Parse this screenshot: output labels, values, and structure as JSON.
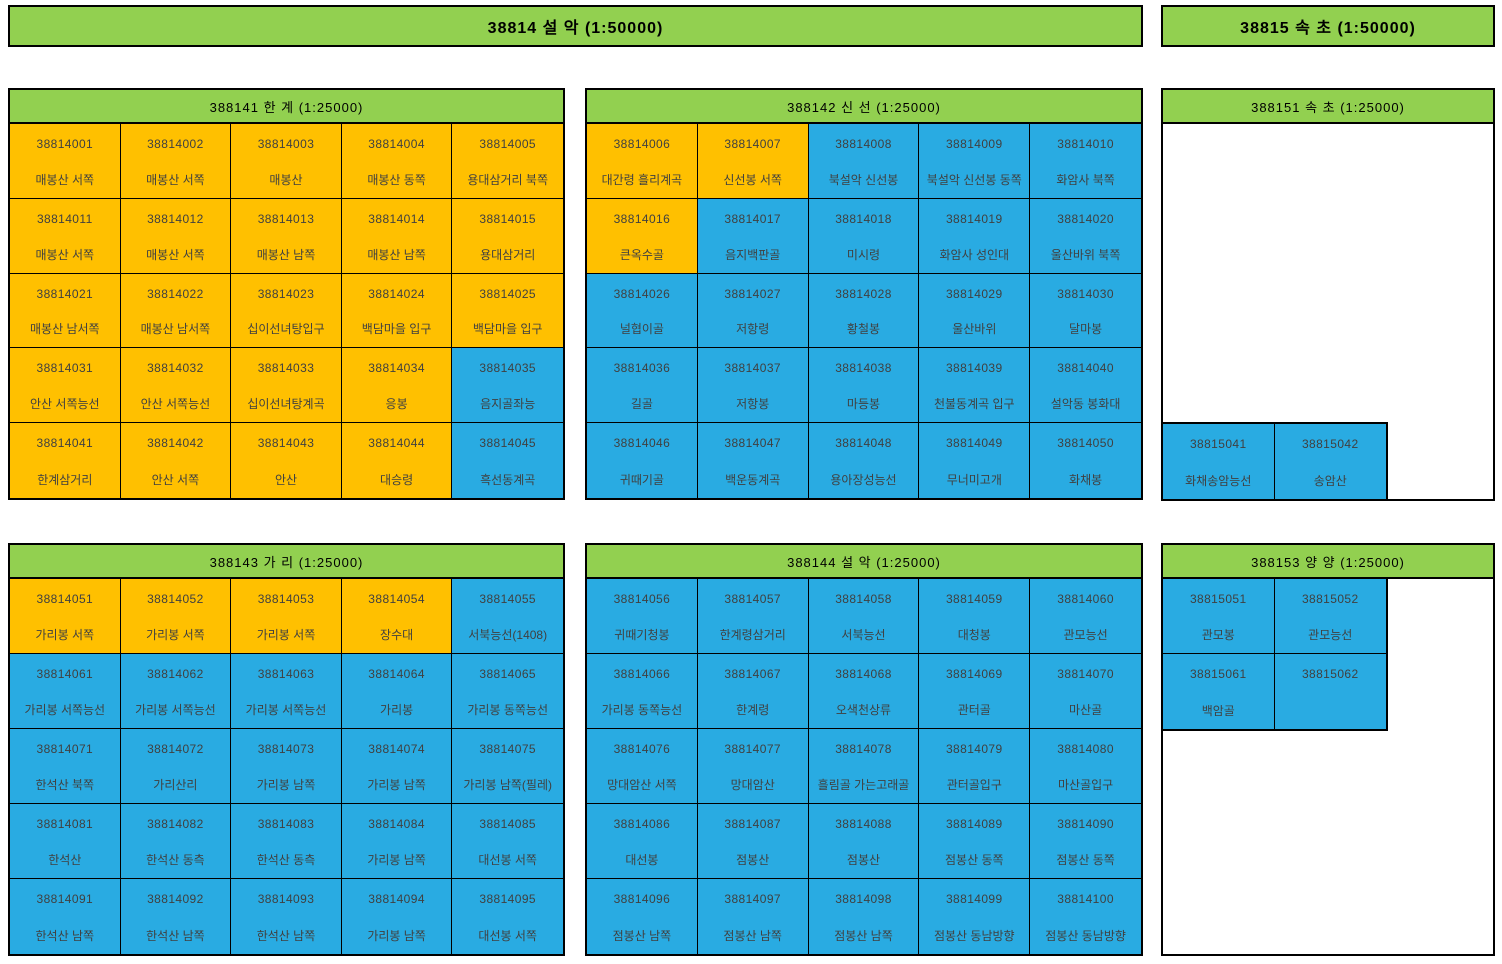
{
  "colors": {
    "header_green": "#92D050",
    "orange": "#FFC000",
    "blue": "#29ABE2",
    "text": "#404040",
    "border": "#000000"
  },
  "top_bars": [
    {
      "title": "38814  설  악 (1:50000)"
    },
    {
      "title": "38815  속  초 (1:50000)"
    }
  ],
  "sections": [
    {
      "id": "388141",
      "title": "388141  한  계 (1:25000)",
      "cells": [
        {
          "num": "38814001",
          "name": "매봉산 서쪽",
          "fill": "orange"
        },
        {
          "num": "38814002",
          "name": "매봉산 서쪽",
          "fill": "orange"
        },
        {
          "num": "38814003",
          "name": "매봉산",
          "fill": "orange"
        },
        {
          "num": "38814004",
          "name": "매봉산 동쪽",
          "fill": "orange"
        },
        {
          "num": "38814005",
          "name": "용대삼거리 북쪽",
          "fill": "orange"
        },
        {
          "num": "38814011",
          "name": "매봉산 서쪽",
          "fill": "orange"
        },
        {
          "num": "38814012",
          "name": "매봉산 서쪽",
          "fill": "orange"
        },
        {
          "num": "38814013",
          "name": "매봉산 남쪽",
          "fill": "orange"
        },
        {
          "num": "38814014",
          "name": "매봉산 남쪽",
          "fill": "orange"
        },
        {
          "num": "38814015",
          "name": "용대삼거리",
          "fill": "orange"
        },
        {
          "num": "38814021",
          "name": "매봉산 남서쪽",
          "fill": "orange"
        },
        {
          "num": "38814022",
          "name": "매봉산 남서쪽",
          "fill": "orange"
        },
        {
          "num": "38814023",
          "name": "십이선녀탕입구",
          "fill": "orange"
        },
        {
          "num": "38814024",
          "name": "백담마을 입구",
          "fill": "orange"
        },
        {
          "num": "38814025",
          "name": "백담마을 입구",
          "fill": "orange"
        },
        {
          "num": "38814031",
          "name": "안산 서쪽능선",
          "fill": "orange"
        },
        {
          "num": "38814032",
          "name": "안산 서쪽능선",
          "fill": "orange"
        },
        {
          "num": "38814033",
          "name": "십이선녀탕계곡",
          "fill": "orange"
        },
        {
          "num": "38814034",
          "name": "응봉",
          "fill": "orange"
        },
        {
          "num": "38814035",
          "name": "음지골좌능",
          "fill": "blue"
        },
        {
          "num": "38814041",
          "name": "한계삼거리",
          "fill": "orange"
        },
        {
          "num": "38814042",
          "name": "안산 서쪽",
          "fill": "orange"
        },
        {
          "num": "38814043",
          "name": "안산",
          "fill": "orange"
        },
        {
          "num": "38814044",
          "name": "대승령",
          "fill": "orange"
        },
        {
          "num": "38814045",
          "name": "흑선동계곡",
          "fill": "blue"
        }
      ]
    },
    {
      "id": "388142",
      "title": "388142  신  선 (1:25000)",
      "cells": [
        {
          "num": "38814006",
          "name": "대간령 흘리계곡",
          "fill": "orange"
        },
        {
          "num": "38814007",
          "name": "신선봉 서쪽",
          "fill": "orange"
        },
        {
          "num": "38814008",
          "name": "북설악 신선봉",
          "fill": "blue"
        },
        {
          "num": "38814009",
          "name": "북설악 신선봉 동쪽",
          "fill": "blue"
        },
        {
          "num": "38814010",
          "name": "화암사 북쪽",
          "fill": "blue"
        },
        {
          "num": "38814016",
          "name": "큰옥수골",
          "fill": "orange"
        },
        {
          "num": "38814017",
          "name": "음지백판골",
          "fill": "blue"
        },
        {
          "num": "38814018",
          "name": "미시령",
          "fill": "blue"
        },
        {
          "num": "38814019",
          "name": "화암사 성인대",
          "fill": "blue"
        },
        {
          "num": "38814020",
          "name": "울산바위 북쪽",
          "fill": "blue"
        },
        {
          "num": "38814026",
          "name": "널협이골",
          "fill": "blue"
        },
        {
          "num": "38814027",
          "name": "저항령",
          "fill": "blue"
        },
        {
          "num": "38814028",
          "name": "황철봉",
          "fill": "blue"
        },
        {
          "num": "38814029",
          "name": "울산바위",
          "fill": "blue"
        },
        {
          "num": "38814030",
          "name": "달마봉",
          "fill": "blue"
        },
        {
          "num": "38814036",
          "name": "길골",
          "fill": "blue"
        },
        {
          "num": "38814037",
          "name": "저항봉",
          "fill": "blue"
        },
        {
          "num": "38814038",
          "name": "마등봉",
          "fill": "blue"
        },
        {
          "num": "38814039",
          "name": "천불동계곡 입구",
          "fill": "blue"
        },
        {
          "num": "38814040",
          "name": "설악동 봉화대",
          "fill": "blue"
        },
        {
          "num": "38814046",
          "name": "귀때기골",
          "fill": "blue"
        },
        {
          "num": "38814047",
          "name": "백운동계곡",
          "fill": "blue"
        },
        {
          "num": "38814048",
          "name": "용아장성능선",
          "fill": "blue"
        },
        {
          "num": "38814049",
          "name": "무너미고개",
          "fill": "blue"
        },
        {
          "num": "38814050",
          "name": "화채봉",
          "fill": "blue"
        }
      ]
    },
    {
      "id": "388151",
      "title": "388151  속  초 (1:25000)",
      "cells": [
        {
          "num": "38815041",
          "name": "화채송암능선",
          "fill": "blue"
        },
        {
          "num": "38815042",
          "name": "송암산",
          "fill": "blue"
        }
      ]
    },
    {
      "id": "388143",
      "title": "388143  가  리 (1:25000)",
      "cells": [
        {
          "num": "38814051",
          "name": "가리봉 서쪽",
          "fill": "orange"
        },
        {
          "num": "38814052",
          "name": "가리봉 서쪽",
          "fill": "orange"
        },
        {
          "num": "38814053",
          "name": "가리봉 서쪽",
          "fill": "orange"
        },
        {
          "num": "38814054",
          "name": "장수대",
          "fill": "orange"
        },
        {
          "num": "38814055",
          "name": "서북능선(1408)",
          "fill": "blue"
        },
        {
          "num": "38814061",
          "name": "가리봉 서쪽능선",
          "fill": "blue"
        },
        {
          "num": "38814062",
          "name": "가리봉 서쪽능선",
          "fill": "blue"
        },
        {
          "num": "38814063",
          "name": "가리봉 서쪽능선",
          "fill": "blue"
        },
        {
          "num": "38814064",
          "name": "가리봉",
          "fill": "blue"
        },
        {
          "num": "38814065",
          "name": "가리봉 동쪽능선",
          "fill": "blue"
        },
        {
          "num": "38814071",
          "name": "한석산 북쪽",
          "fill": "blue"
        },
        {
          "num": "38814072",
          "name": "가리산리",
          "fill": "blue"
        },
        {
          "num": "38814073",
          "name": "가리봉 남쪽",
          "fill": "blue"
        },
        {
          "num": "38814074",
          "name": "가리봉 남쪽",
          "fill": "blue"
        },
        {
          "num": "38814075",
          "name": "가리봉 남쪽(필레)",
          "fill": "blue"
        },
        {
          "num": "38814081",
          "name": "한석산",
          "fill": "blue"
        },
        {
          "num": "38814082",
          "name": "한석산 동측",
          "fill": "blue"
        },
        {
          "num": "38814083",
          "name": "한석산 동측",
          "fill": "blue"
        },
        {
          "num": "38814084",
          "name": "가리봉 남쪽",
          "fill": "blue"
        },
        {
          "num": "38814085",
          "name": "대선봉 서쪽",
          "fill": "blue"
        },
        {
          "num": "38814091",
          "name": "한석산 남쪽",
          "fill": "blue"
        },
        {
          "num": "38814092",
          "name": "한석산 남쪽",
          "fill": "blue"
        },
        {
          "num": "38814093",
          "name": "한석산 남쪽",
          "fill": "blue"
        },
        {
          "num": "38814094",
          "name": "가리봉 남쪽",
          "fill": "blue"
        },
        {
          "num": "38814095",
          "name": "대선봉 서쪽",
          "fill": "blue"
        }
      ]
    },
    {
      "id": "388144",
      "title": "388144  설  악 (1:25000)",
      "cells": [
        {
          "num": "38814056",
          "name": "귀때기청봉",
          "fill": "blue"
        },
        {
          "num": "38814057",
          "name": "한계령삼거리",
          "fill": "blue"
        },
        {
          "num": "38814058",
          "name": "서북능선",
          "fill": "blue"
        },
        {
          "num": "38814059",
          "name": "대청봉",
          "fill": "blue"
        },
        {
          "num": "38814060",
          "name": "관모능선",
          "fill": "blue"
        },
        {
          "num": "38814066",
          "name": "가리봉 동쪽능선",
          "fill": "blue"
        },
        {
          "num": "38814067",
          "name": "한계령",
          "fill": "blue"
        },
        {
          "num": "38814068",
          "name": "오색천상류",
          "fill": "blue"
        },
        {
          "num": "38814069",
          "name": "관터골",
          "fill": "blue"
        },
        {
          "num": "38814070",
          "name": "마산골",
          "fill": "blue"
        },
        {
          "num": "38814076",
          "name": "망대암산 서쪽",
          "fill": "blue"
        },
        {
          "num": "38814077",
          "name": "망대암산",
          "fill": "blue"
        },
        {
          "num": "38814078",
          "name": "흘림골 가는고래골",
          "fill": "blue"
        },
        {
          "num": "38814079",
          "name": "관터골입구",
          "fill": "blue"
        },
        {
          "num": "38814080",
          "name": "마산골입구",
          "fill": "blue"
        },
        {
          "num": "38814086",
          "name": "대선봉",
          "fill": "blue"
        },
        {
          "num": "38814087",
          "name": "점봉산",
          "fill": "blue"
        },
        {
          "num": "38814088",
          "name": "점봉산",
          "fill": "blue"
        },
        {
          "num": "38814089",
          "name": "점봉산 동쪽",
          "fill": "blue"
        },
        {
          "num": "38814090",
          "name": "점봉산 동쪽",
          "fill": "blue"
        },
        {
          "num": "38814096",
          "name": "점봉산 남쪽",
          "fill": "blue"
        },
        {
          "num": "38814097",
          "name": "점봉산 남쪽",
          "fill": "blue"
        },
        {
          "num": "38814098",
          "name": "점봉산 남쪽",
          "fill": "blue"
        },
        {
          "num": "38814099",
          "name": "점봉산 동남방향",
          "fill": "blue"
        },
        {
          "num": "38814100",
          "name": "점봉산 동남방향",
          "fill": "blue"
        }
      ]
    },
    {
      "id": "388153",
      "title": "388153  양  양 (1:25000)",
      "cells": [
        {
          "num": "38815051",
          "name": "관모봉",
          "fill": "blue"
        },
        {
          "num": "38815052",
          "name": "관모능선",
          "fill": "blue"
        },
        {
          "num": "38815061",
          "name": "백암골",
          "fill": "blue"
        },
        {
          "num": "38815062",
          "name": "",
          "fill": "blue"
        }
      ]
    }
  ]
}
